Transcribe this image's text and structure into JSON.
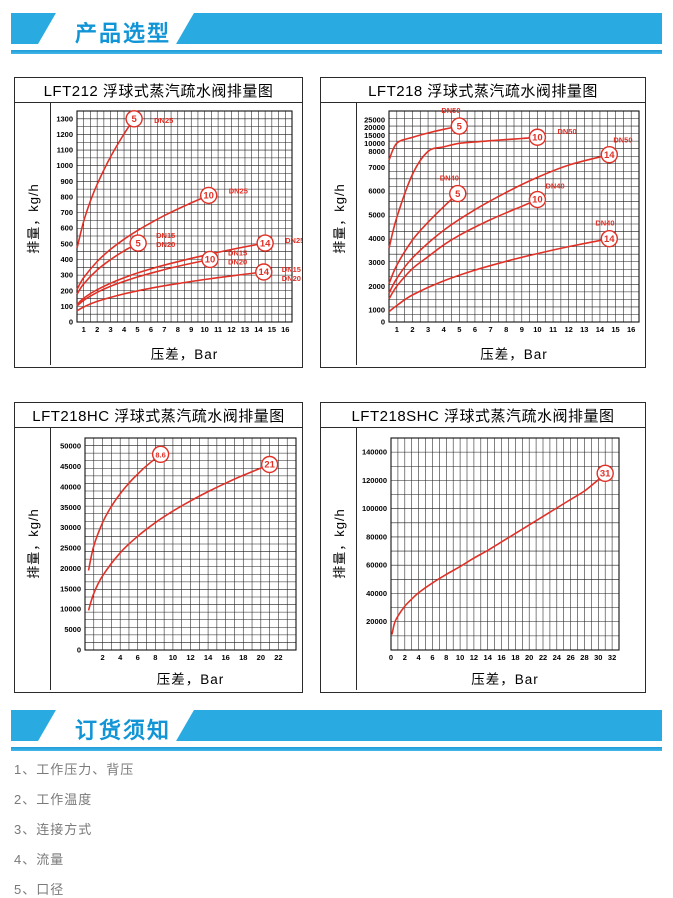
{
  "sections": [
    {
      "title": "产品选型"
    },
    {
      "title": "订货须知"
    }
  ],
  "colors": {
    "accent_band": "#29abe2",
    "banner_text": "#1295d6",
    "curve_red": "#e03127",
    "grid": "#1c1c1c",
    "notes_text": "#7a7a7a"
  },
  "notes": {
    "items": [
      "1、工作压力、背压",
      "2、工作温度",
      "3、连接方式",
      "4、流量",
      "5、口径"
    ]
  },
  "chart_data": [
    {
      "type": "line",
      "title": "LFT212 浮球式蒸汽疏水阀排量图",
      "xlabel": "压差，Bar",
      "ylabel": "排量，kg/h",
      "x": {
        "min": 0.5,
        "max": 16.5,
        "minor": 0.5,
        "ticks": [
          1,
          2,
          3,
          4,
          5,
          6,
          7,
          8,
          9,
          10,
          11,
          12,
          13,
          14,
          15,
          16
        ]
      },
      "y": {
        "rows": 27,
        "ticks": [
          [
            0,
            0
          ],
          [
            100,
            0.0741
          ],
          [
            200,
            0.1481
          ],
          [
            300,
            0.2222
          ],
          [
            400,
            0.2963
          ],
          [
            500,
            0.3704
          ],
          [
            600,
            0.4444
          ],
          [
            700,
            0.5185
          ],
          [
            800,
            0.5926
          ],
          [
            900,
            0.6667
          ],
          [
            1000,
            0.7407
          ],
          [
            1100,
            0.8148
          ],
          [
            1200,
            0.8889
          ],
          [
            1300,
            0.963
          ]
        ]
      },
      "series": [
        {
          "name": "DN25 max 5 bar",
          "label": "5",
          "tag": [
            "DN25"
          ],
          "tdx": 10,
          "tdy": 4,
          "points": [
            [
              0.5,
              472
            ],
            [
              1,
              645
            ],
            [
              1.5,
              774
            ],
            [
              2,
              881
            ],
            [
              3,
              1057
            ],
            [
              4,
              1203
            ],
            [
              4.75,
              1300
            ]
          ]
        },
        {
          "name": "DN25 max 10 bar",
          "label": "10",
          "tag": [
            "DN25"
          ],
          "tdx": 10,
          "tdy": -2,
          "points": [
            [
              0.5,
              208
            ],
            [
              1,
              284
            ],
            [
              2,
              387
            ],
            [
              3,
              465
            ],
            [
              4,
              529
            ],
            [
              5,
              585
            ],
            [
              6,
              635
            ],
            [
              7,
              681
            ],
            [
              8,
              723
            ],
            [
              9,
              762
            ],
            [
              10.3,
              810
            ]
          ]
        },
        {
          "name": "DN15/DN20 max 5 bar",
          "label": "5",
          "tag": [
            "DN15",
            "DN20"
          ],
          "tdx": 9,
          "tdy": -5,
          "points": [
            [
              0.5,
              178
            ],
            [
              1,
              244
            ],
            [
              2,
              333
            ],
            [
              3,
              399
            ],
            [
              4,
              455
            ],
            [
              5.05,
              505
            ]
          ]
        },
        {
          "name": "DN25 max 14 bar",
          "label": "14",
          "tag": [
            "DN25"
          ],
          "tdx": 10,
          "tdy": 0,
          "points": [
            [
              0.5,
              111
            ],
            [
              1,
              152
            ],
            [
              2,
              207
            ],
            [
              4,
              283
            ],
            [
              6,
              340
            ],
            [
              8,
              386
            ],
            [
              10,
              427
            ],
            [
              12,
              464
            ],
            [
              14.5,
              505
            ]
          ]
        },
        {
          "name": "DN15/DN20 max 10 bar",
          "label": "10",
          "tag": [
            "DN15",
            "DN20"
          ],
          "tdx": 9,
          "tdy": -4,
          "points": [
            [
              0.5,
              102
            ],
            [
              1,
              139
            ],
            [
              2,
              190
            ],
            [
              3,
              229
            ],
            [
              4,
              260
            ],
            [
              5,
              288
            ],
            [
              6,
              312
            ],
            [
              7,
              335
            ],
            [
              8,
              356
            ],
            [
              9,
              375
            ],
            [
              10.4,
              400
            ]
          ]
        },
        {
          "name": "DN15/DN20 max 14 bar",
          "label": "14",
          "tag": [
            "DN15",
            "DN20"
          ],
          "tdx": 9,
          "tdy": 0,
          "points": [
            [
              0.5,
              71
            ],
            [
              1,
              96
            ],
            [
              2,
              132
            ],
            [
              4,
              180
            ],
            [
              6,
              216
            ],
            [
              8,
              246
            ],
            [
              10,
              272
            ],
            [
              12,
              295
            ],
            [
              14.4,
              320
            ]
          ]
        }
      ]
    },
    {
      "type": "line",
      "title": "LFT218 浮球式蒸汽疏水阀排量图",
      "xlabel": "压差，Bar",
      "ylabel": "排量，kg/h",
      "x": {
        "min": 0.5,
        "max": 16.5,
        "minor": 0.5,
        "ticks": [
          1,
          2,
          3,
          4,
          5,
          6,
          7,
          8,
          9,
          10,
          11,
          12,
          13,
          14,
          15,
          16
        ]
      },
      "y": {
        "rows": 28,
        "ticks": [
          [
            0,
            0
          ],
          [
            1000,
            0.056
          ],
          [
            2000,
            0.169
          ],
          [
            3000,
            0.282
          ],
          [
            4000,
            0.395
          ],
          [
            5000,
            0.507
          ],
          [
            6000,
            0.62
          ],
          [
            7000,
            0.733
          ],
          [
            8000,
            0.808
          ],
          [
            10000,
            0.846
          ],
          [
            15000,
            0.883
          ],
          [
            20000,
            0.921
          ],
          [
            25000,
            0.958
          ]
        ]
      },
      "series": [
        {
          "name": "DN50 max 5 bar",
          "label": "5",
          "tag": [
            "DN50"
          ],
          "tdx": -9,
          "tdy": -13,
          "points": [
            [
              0.5,
              7450
            ],
            [
              1,
              10180
            ],
            [
              2,
              13900
            ],
            [
              3,
              16690
            ],
            [
              4,
              19000
            ],
            [
              5,
              21000
            ]
          ]
        },
        {
          "name": "DN50 max 10 bar",
          "label": "10",
          "tag": [
            "DN50"
          ],
          "tdx": 10,
          "tdy": -3,
          "points": [
            [
              0.5,
              3590
            ],
            [
              1,
              4900
            ],
            [
              2,
              6700
            ],
            [
              3,
              8030
            ],
            [
              4,
              9145
            ],
            [
              5,
              10110
            ],
            [
              6,
              10980
            ],
            [
              7,
              11770
            ],
            [
              8,
              12495
            ],
            [
              9,
              13175
            ],
            [
              10,
              14000
            ]
          ]
        },
        {
          "name": "DN50 max 14 bar",
          "label": "14",
          "tag": [
            "DN50"
          ],
          "tdx": 2,
          "tdy": -12,
          "points": [
            [
              0.5,
              1710
            ],
            [
              1,
              2330
            ],
            [
              2,
              3190
            ],
            [
              4,
              4355
            ],
            [
              6,
              5225
            ],
            [
              8,
              5950
            ],
            [
              10,
              6580
            ],
            [
              12,
              7140
            ],
            [
              14.6,
              7800
            ]
          ]
        },
        {
          "name": "DN40 max 5 bar",
          "label": "5",
          "tag": [
            "DN40"
          ],
          "tdx": -9,
          "tdy": -13,
          "points": [
            [
              0.5,
              2110
            ],
            [
              1,
              2885
            ],
            [
              2,
              3940
            ],
            [
              3,
              4695
            ],
            [
              4,
              5350
            ],
            [
              4.9,
              5900
            ]
          ]
        },
        {
          "name": "DN40 max 10 bar",
          "label": "10",
          "tag": [
            "DN40"
          ],
          "tdx": 4,
          "tdy": -11,
          "points": [
            [
              0.5,
              1470
            ],
            [
              1,
              2005
            ],
            [
              2,
              2740
            ],
            [
              3,
              3245
            ],
            [
              4,
              3740
            ],
            [
              5,
              4140
            ],
            [
              6,
              4490
            ],
            [
              7,
              4805
            ],
            [
              8,
              5095
            ],
            [
              9,
              5365
            ],
            [
              10,
              5650
            ]
          ]
        },
        {
          "name": "DN40 max 14 bar",
          "label": "14",
          "tag": [
            "DN40"
          ],
          "tdx": -7,
          "tdy": -13,
          "points": [
            [
              0.5,
              875
            ],
            [
              1,
              1195
            ],
            [
              2,
              1635
            ],
            [
              4,
              2230
            ],
            [
              6,
              2680
            ],
            [
              8,
              3050
            ],
            [
              10,
              3375
            ],
            [
              12,
              3665
            ],
            [
              14.6,
              4000
            ]
          ]
        }
      ]
    },
    {
      "type": "line",
      "title": "LFT218HC 浮球式蒸汽疏水阀排量图",
      "xlabel": "压差，Bar",
      "ylabel": "排量，kg/h",
      "x": {
        "min": 0,
        "max": 24,
        "minor": 1,
        "ticks": [
          2,
          4,
          6,
          8,
          10,
          12,
          14,
          16,
          18,
          20,
          22
        ]
      },
      "y": {
        "rows": 28,
        "ticks": [
          [
            0,
            0
          ],
          [
            5000,
            0.0962
          ],
          [
            10000,
            0.1923
          ],
          [
            15000,
            0.2885
          ],
          [
            20000,
            0.3846
          ],
          [
            25000,
            0.4808
          ],
          [
            30000,
            0.5769
          ],
          [
            35000,
            0.6731
          ],
          [
            40000,
            0.7692
          ],
          [
            45000,
            0.8654
          ],
          [
            50000,
            0.9615
          ]
        ]
      },
      "series": [
        {
          "name": "max 8.6 bar",
          "label": "8.6",
          "tag": [],
          "tdx": 0,
          "tdy": 0,
          "points": [
            [
              0.4,
              19500
            ],
            [
              1,
              25500
            ],
            [
              2,
              31260
            ],
            [
              3,
              35220
            ],
            [
              4,
              38330
            ],
            [
              5,
              40930
            ],
            [
              6,
              43180
            ],
            [
              7,
              45180
            ],
            [
              8.6,
              48000
            ]
          ]
        },
        {
          "name": "max 21 bar",
          "label": "21",
          "tag": [],
          "tdx": 0,
          "tdy": 0,
          "points": [
            [
              0.4,
              9710
            ],
            [
              1,
              13880
            ],
            [
              2,
              18190
            ],
            [
              4,
              23830
            ],
            [
              6,
              27910
            ],
            [
              8,
              31230
            ],
            [
              10,
              34070
            ],
            [
              12,
              36580
            ],
            [
              14,
              38850
            ],
            [
              16,
              40920
            ],
            [
              18,
              42850
            ],
            [
              21,
              45500
            ]
          ]
        }
      ]
    },
    {
      "type": "line",
      "title": "LFT218SHC 浮球式蒸汽疏水阀排量图",
      "xlabel": "压差，Bar",
      "ylabel": "排量，kg/h",
      "x": {
        "min": 0,
        "max": 33,
        "minor": 1,
        "ticks": [
          0,
          2,
          4,
          6,
          8,
          10,
          12,
          14,
          16,
          18,
          20,
          22,
          24,
          26,
          28,
          30,
          32
        ]
      },
      "y": {
        "rows": 15,
        "ticks": [
          [
            20000,
            0.1333
          ],
          [
            40000,
            0.2667
          ],
          [
            60000,
            0.4
          ],
          [
            80000,
            0.5333
          ],
          [
            100000,
            0.6667
          ],
          [
            120000,
            0.8
          ],
          [
            140000,
            0.9333
          ]
        ]
      },
      "series": [
        {
          "name": "max 31 bar",
          "label": "31",
          "tag": [],
          "tdx": 0,
          "tdy": 0,
          "points": [
            [
              0.15,
              11000
            ],
            [
              0.5,
              19000
            ],
            [
              1,
              24000
            ],
            [
              2,
              31000
            ],
            [
              3,
              36000
            ],
            [
              4,
              40500
            ],
            [
              6,
              47500
            ],
            [
              8,
              53500
            ],
            [
              10,
              59000
            ],
            [
              12,
              65000
            ],
            [
              14,
              70500
            ],
            [
              16,
              76500
            ],
            [
              18,
              82500
            ],
            [
              20,
              88500
            ],
            [
              22,
              94500
            ],
            [
              24,
              100500
            ],
            [
              26,
              106500
            ],
            [
              28,
              112500
            ],
            [
              30,
              120500
            ],
            [
              31,
              125000
            ]
          ]
        }
      ]
    }
  ]
}
